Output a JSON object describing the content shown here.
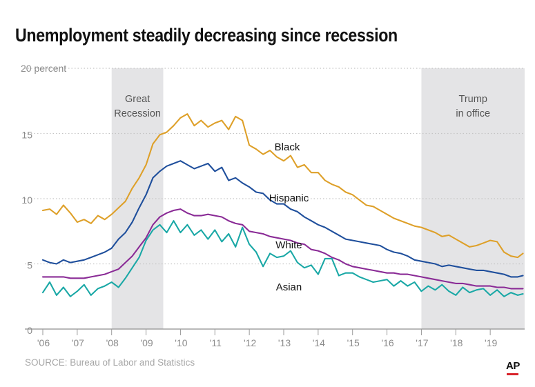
{
  "title": "Unemployment steadily decreasing since recession",
  "source": "SOURCE: Bureau of Labor and Statistics",
  "logo": "AP",
  "colors": {
    "Black": "#dea029",
    "Hispanic": "#1f4f9c",
    "White": "#8a2b96",
    "Asian": "#1aa8a6",
    "shade": "#e4e4e6",
    "accent": "#d8232a"
  },
  "chart_data": {
    "type": "line",
    "title": "Unemployment steadily decreasing since recession",
    "xlabel": "",
    "ylabel": "percent",
    "xlim": [
      2006,
      2020
    ],
    "ylim": [
      0,
      20
    ],
    "grid": true,
    "x_ticks": [
      {
        "value": 2006,
        "label": "'06"
      },
      {
        "value": 2007,
        "label": "'07"
      },
      {
        "value": 2008,
        "label": "'08"
      },
      {
        "value": 2009,
        "label": "'09"
      },
      {
        "value": 2010,
        "label": "'10"
      },
      {
        "value": 2011,
        "label": "'11"
      },
      {
        "value": 2012,
        "label": "'12"
      },
      {
        "value": 2013,
        "label": "'13"
      },
      {
        "value": 2014,
        "label": "'14"
      },
      {
        "value": 2015,
        "label": "'15"
      },
      {
        "value": 2016,
        "label": "'16"
      },
      {
        "value": 2017,
        "label": "'17"
      },
      {
        "value": 2018,
        "label": "'18"
      },
      {
        "value": 2019,
        "label": "'19"
      }
    ],
    "y_ticks": [
      {
        "value": 0,
        "label": "0"
      },
      {
        "value": 5,
        "label": "5"
      },
      {
        "value": 10,
        "label": "10"
      },
      {
        "value": 15,
        "label": "15"
      },
      {
        "value": 20,
        "label": "20 percent"
      }
    ],
    "shaded_periods": [
      {
        "start": 2008.0,
        "end": 2009.5,
        "label": [
          "Great",
          "Recession"
        ]
      },
      {
        "start": 2017.0,
        "end": 2020.0,
        "label": [
          "Trump",
          "in office"
        ]
      }
    ],
    "series": [
      {
        "name": "Black",
        "label_at": {
          "x": 2013.1,
          "y": 13.7
        },
        "x": [
          2006.0,
          2006.2,
          2006.4,
          2006.6,
          2006.8,
          2007.0,
          2007.2,
          2007.4,
          2007.6,
          2007.8,
          2008.0,
          2008.2,
          2008.4,
          2008.6,
          2008.8,
          2009.0,
          2009.2,
          2009.4,
          2009.6,
          2009.8,
          2010.0,
          2010.2,
          2010.4,
          2010.6,
          2010.8,
          2011.0,
          2011.2,
          2011.4,
          2011.6,
          2011.8,
          2012.0,
          2012.2,
          2012.4,
          2012.6,
          2012.8,
          2013.0,
          2013.2,
          2013.4,
          2013.6,
          2013.8,
          2014.0,
          2014.2,
          2014.4,
          2014.6,
          2014.8,
          2015.0,
          2015.2,
          2015.4,
          2015.6,
          2015.8,
          2016.0,
          2016.2,
          2016.4,
          2016.6,
          2016.8,
          2017.0,
          2017.2,
          2017.4,
          2017.6,
          2017.8,
          2018.0,
          2018.2,
          2018.4,
          2018.6,
          2018.8,
          2019.0,
          2019.2,
          2019.4,
          2019.6,
          2019.8,
          2019.95
        ],
        "values": [
          9.1,
          9.2,
          8.8,
          9.5,
          8.9,
          8.2,
          8.4,
          8.1,
          8.7,
          8.4,
          8.8,
          9.3,
          9.8,
          10.8,
          11.6,
          12.6,
          14.2,
          14.9,
          15.1,
          15.6,
          16.2,
          16.5,
          15.6,
          16.0,
          15.5,
          15.8,
          16.0,
          15.3,
          16.3,
          16.0,
          14.1,
          13.8,
          13.4,
          13.7,
          13.2,
          12.9,
          13.3,
          12.4,
          12.6,
          12.0,
          12.0,
          11.4,
          11.1,
          10.9,
          10.5,
          10.3,
          9.9,
          9.5,
          9.4,
          9.1,
          8.8,
          8.5,
          8.3,
          8.1,
          7.9,
          7.8,
          7.6,
          7.4,
          7.1,
          7.2,
          6.9,
          6.6,
          6.3,
          6.4,
          6.6,
          6.8,
          6.7,
          5.9,
          5.6,
          5.5,
          5.8
        ]
      },
      {
        "name": "Hispanic",
        "label_at": {
          "x": 2013.15,
          "y": 9.8
        },
        "x": [
          2006.0,
          2006.2,
          2006.4,
          2006.6,
          2006.8,
          2007.0,
          2007.2,
          2007.4,
          2007.6,
          2007.8,
          2008.0,
          2008.2,
          2008.4,
          2008.6,
          2008.8,
          2009.0,
          2009.2,
          2009.4,
          2009.6,
          2009.8,
          2010.0,
          2010.2,
          2010.4,
          2010.6,
          2010.8,
          2011.0,
          2011.2,
          2011.4,
          2011.6,
          2011.8,
          2012.0,
          2012.2,
          2012.4,
          2012.6,
          2012.8,
          2013.0,
          2013.2,
          2013.4,
          2013.6,
          2013.8,
          2014.0,
          2014.2,
          2014.4,
          2014.6,
          2014.8,
          2015.0,
          2015.2,
          2015.4,
          2015.6,
          2015.8,
          2016.0,
          2016.2,
          2016.4,
          2016.6,
          2016.8,
          2017.0,
          2017.2,
          2017.4,
          2017.6,
          2017.8,
          2018.0,
          2018.2,
          2018.4,
          2018.6,
          2018.8,
          2019.0,
          2019.2,
          2019.4,
          2019.6,
          2019.8,
          2019.95
        ],
        "values": [
          5.3,
          5.1,
          5.0,
          5.3,
          5.1,
          5.2,
          5.3,
          5.5,
          5.7,
          5.9,
          6.2,
          6.9,
          7.4,
          8.2,
          9.3,
          10.3,
          11.6,
          12.1,
          12.5,
          12.7,
          12.9,
          12.6,
          12.3,
          12.5,
          12.7,
          12.1,
          12.4,
          11.4,
          11.6,
          11.2,
          10.9,
          10.5,
          10.4,
          9.9,
          9.6,
          9.6,
          9.2,
          9.0,
          8.6,
          8.3,
          8.0,
          7.8,
          7.5,
          7.2,
          6.9,
          6.8,
          6.7,
          6.6,
          6.5,
          6.4,
          6.1,
          5.9,
          5.8,
          5.6,
          5.3,
          5.2,
          5.1,
          5.0,
          4.8,
          4.9,
          4.8,
          4.7,
          4.6,
          4.5,
          4.5,
          4.4,
          4.3,
          4.2,
          4.0,
          4.0,
          4.1
        ]
      },
      {
        "name": "White",
        "label_at": {
          "x": 2013.15,
          "y": 6.2
        },
        "x": [
          2006.0,
          2006.2,
          2006.4,
          2006.6,
          2006.8,
          2007.0,
          2007.2,
          2007.4,
          2007.6,
          2007.8,
          2008.0,
          2008.2,
          2008.4,
          2008.6,
          2008.8,
          2009.0,
          2009.2,
          2009.4,
          2009.6,
          2009.8,
          2010.0,
          2010.2,
          2010.4,
          2010.6,
          2010.8,
          2011.0,
          2011.2,
          2011.4,
          2011.6,
          2011.8,
          2012.0,
          2012.2,
          2012.4,
          2012.6,
          2012.8,
          2013.0,
          2013.2,
          2013.4,
          2013.6,
          2013.8,
          2014.0,
          2014.2,
          2014.4,
          2014.6,
          2014.8,
          2015.0,
          2015.2,
          2015.4,
          2015.6,
          2015.8,
          2016.0,
          2016.2,
          2016.4,
          2016.6,
          2016.8,
          2017.0,
          2017.2,
          2017.4,
          2017.6,
          2017.8,
          2018.0,
          2018.2,
          2018.4,
          2018.6,
          2018.8,
          2019.0,
          2019.2,
          2019.4,
          2019.6,
          2019.8,
          2019.95
        ],
        "values": [
          4.0,
          4.0,
          4.0,
          4.0,
          3.9,
          3.9,
          3.9,
          4.0,
          4.1,
          4.2,
          4.4,
          4.6,
          5.1,
          5.6,
          6.3,
          7.0,
          8.0,
          8.6,
          8.9,
          9.1,
          9.2,
          8.9,
          8.7,
          8.7,
          8.8,
          8.7,
          8.6,
          8.3,
          8.1,
          8.0,
          7.5,
          7.4,
          7.3,
          7.1,
          7.0,
          6.9,
          6.8,
          6.6,
          6.5,
          6.1,
          6.0,
          5.8,
          5.5,
          5.3,
          5.0,
          4.8,
          4.7,
          4.6,
          4.5,
          4.4,
          4.3,
          4.3,
          4.2,
          4.2,
          4.1,
          4.0,
          3.9,
          3.8,
          3.7,
          3.6,
          3.5,
          3.5,
          3.4,
          3.3,
          3.3,
          3.3,
          3.2,
          3.2,
          3.1,
          3.1,
          3.1
        ]
      },
      {
        "name": "Asian",
        "label_at": {
          "x": 2013.15,
          "y": 2.95
        },
        "x": [
          2006.0,
          2006.2,
          2006.4,
          2006.6,
          2006.8,
          2007.0,
          2007.2,
          2007.4,
          2007.6,
          2007.8,
          2008.0,
          2008.2,
          2008.4,
          2008.6,
          2008.8,
          2009.0,
          2009.2,
          2009.4,
          2009.6,
          2009.8,
          2010.0,
          2010.2,
          2010.4,
          2010.6,
          2010.8,
          2011.0,
          2011.2,
          2011.4,
          2011.6,
          2011.8,
          2012.0,
          2012.2,
          2012.4,
          2012.6,
          2012.8,
          2013.0,
          2013.2,
          2013.4,
          2013.6,
          2013.8,
          2014.0,
          2014.2,
          2014.4,
          2014.6,
          2014.8,
          2015.0,
          2015.2,
          2015.4,
          2015.6,
          2015.8,
          2016.0,
          2016.2,
          2016.4,
          2016.6,
          2016.8,
          2017.0,
          2017.2,
          2017.4,
          2017.6,
          2017.8,
          2018.0,
          2018.2,
          2018.4,
          2018.6,
          2018.8,
          2019.0,
          2019.2,
          2019.4,
          2019.6,
          2019.8,
          2019.95
        ],
        "values": [
          2.8,
          3.6,
          2.6,
          3.2,
          2.5,
          2.9,
          3.4,
          2.6,
          3.1,
          3.3,
          3.6,
          3.2,
          3.9,
          4.7,
          5.5,
          6.8,
          7.6,
          8.0,
          7.4,
          8.3,
          7.4,
          8.0,
          7.2,
          7.6,
          6.9,
          7.6,
          6.7,
          7.3,
          6.3,
          7.8,
          6.5,
          5.9,
          4.8,
          5.8,
          5.5,
          5.6,
          6.0,
          5.1,
          4.7,
          4.9,
          4.2,
          5.4,
          5.4,
          4.1,
          4.3,
          4.3,
          4.0,
          3.8,
          3.6,
          3.7,
          3.8,
          3.3,
          3.7,
          3.3,
          3.6,
          2.9,
          3.3,
          3.0,
          3.4,
          2.9,
          2.6,
          3.2,
          2.8,
          3.0,
          3.1,
          2.6,
          3.0,
          2.5,
          2.8,
          2.6,
          2.7
        ]
      }
    ]
  }
}
